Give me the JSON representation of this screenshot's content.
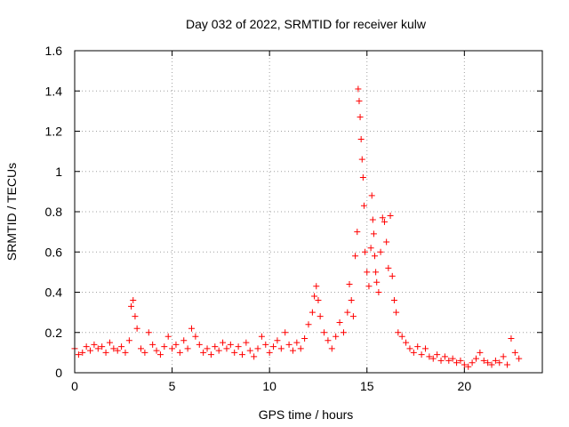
{
  "chart_data": {
    "type": "scatter",
    "title": "Day 032 of 2022, SRMTID for receiver kulw",
    "xlabel": "GPS time / hours",
    "ylabel": "SRMTID / TECUs",
    "xlim": [
      0,
      24
    ],
    "ylim": [
      0,
      1.6
    ],
    "x_ticks": [
      0,
      5,
      10,
      15,
      20
    ],
    "y_ticks": [
      0,
      0.2,
      0.4,
      0.6,
      0.8,
      1,
      1.2,
      1.4,
      1.6
    ],
    "x_tick_labels": [
      "0",
      "5",
      "10",
      "15",
      "20"
    ],
    "y_tick_labels": [
      "0",
      "0.2",
      "0.4",
      "0.6",
      "0.8",
      "1",
      "1.2",
      "1.4",
      "1.6"
    ],
    "grid": true,
    "marker": "plus",
    "series": [
      {
        "name": "SRMTID",
        "color": "#ff0000",
        "x": [
          0.0,
          0.2,
          0.4,
          0.6,
          0.8,
          1.0,
          1.2,
          1.4,
          1.6,
          1.8,
          2.0,
          2.2,
          2.4,
          2.6,
          2.8,
          2.9,
          3.0,
          3.1,
          3.2,
          3.4,
          3.6,
          3.8,
          4.0,
          4.2,
          4.4,
          4.6,
          4.8,
          5.0,
          5.2,
          5.4,
          5.6,
          5.8,
          6.0,
          6.2,
          6.4,
          6.6,
          6.8,
          7.0,
          7.2,
          7.4,
          7.6,
          7.8,
          8.0,
          8.2,
          8.4,
          8.6,
          8.8,
          9.0,
          9.2,
          9.4,
          9.6,
          9.8,
          10.0,
          10.2,
          10.4,
          10.6,
          10.8,
          11.0,
          11.2,
          11.4,
          11.6,
          11.8,
          12.0,
          12.2,
          12.3,
          12.4,
          12.5,
          12.6,
          12.8,
          13.0,
          13.2,
          13.4,
          13.6,
          13.8,
          14.0,
          14.1,
          14.2,
          14.3,
          14.4,
          14.5,
          14.55,
          14.6,
          14.65,
          14.7,
          14.75,
          14.8,
          14.85,
          14.9,
          15.0,
          15.1,
          15.2,
          15.25,
          15.3,
          15.35,
          15.4,
          15.45,
          15.5,
          15.6,
          15.7,
          15.8,
          15.9,
          16.0,
          16.1,
          16.2,
          16.3,
          16.4,
          16.5,
          16.6,
          16.8,
          17.0,
          17.2,
          17.4,
          17.6,
          17.8,
          18.0,
          18.2,
          18.4,
          18.6,
          18.8,
          19.0,
          19.2,
          19.4,
          19.6,
          19.8,
          20.0,
          20.2,
          20.4,
          20.6,
          20.8,
          21.0,
          21.2,
          21.4,
          21.6,
          21.8,
          22.0,
          22.2,
          22.4,
          22.6,
          22.8
        ],
        "y": [
          0.12,
          0.09,
          0.1,
          0.13,
          0.11,
          0.14,
          0.12,
          0.13,
          0.1,
          0.15,
          0.12,
          0.11,
          0.13,
          0.1,
          0.16,
          0.33,
          0.36,
          0.28,
          0.22,
          0.12,
          0.1,
          0.2,
          0.14,
          0.11,
          0.09,
          0.13,
          0.18,
          0.12,
          0.14,
          0.1,
          0.16,
          0.12,
          0.22,
          0.18,
          0.14,
          0.1,
          0.12,
          0.09,
          0.13,
          0.11,
          0.15,
          0.12,
          0.14,
          0.1,
          0.13,
          0.09,
          0.15,
          0.11,
          0.08,
          0.12,
          0.18,
          0.14,
          0.1,
          0.13,
          0.16,
          0.12,
          0.2,
          0.14,
          0.11,
          0.15,
          0.12,
          0.17,
          0.24,
          0.3,
          0.38,
          0.43,
          0.36,
          0.28,
          0.2,
          0.16,
          0.12,
          0.18,
          0.25,
          0.2,
          0.3,
          0.44,
          0.36,
          0.28,
          0.58,
          0.7,
          1.41,
          1.35,
          1.27,
          1.16,
          1.06,
          0.97,
          0.83,
          0.6,
          0.5,
          0.43,
          0.62,
          0.88,
          0.76,
          0.69,
          0.58,
          0.5,
          0.45,
          0.4,
          0.6,
          0.77,
          0.75,
          0.65,
          0.52,
          0.78,
          0.48,
          0.36,
          0.3,
          0.2,
          0.18,
          0.15,
          0.12,
          0.1,
          0.13,
          0.09,
          0.12,
          0.08,
          0.07,
          0.09,
          0.06,
          0.08,
          0.06,
          0.07,
          0.05,
          0.06,
          0.04,
          0.03,
          0.05,
          0.07,
          0.1,
          0.06,
          0.05,
          0.04,
          0.06,
          0.05,
          0.08,
          0.04,
          0.17,
          0.1,
          0.07
        ]
      }
    ]
  }
}
